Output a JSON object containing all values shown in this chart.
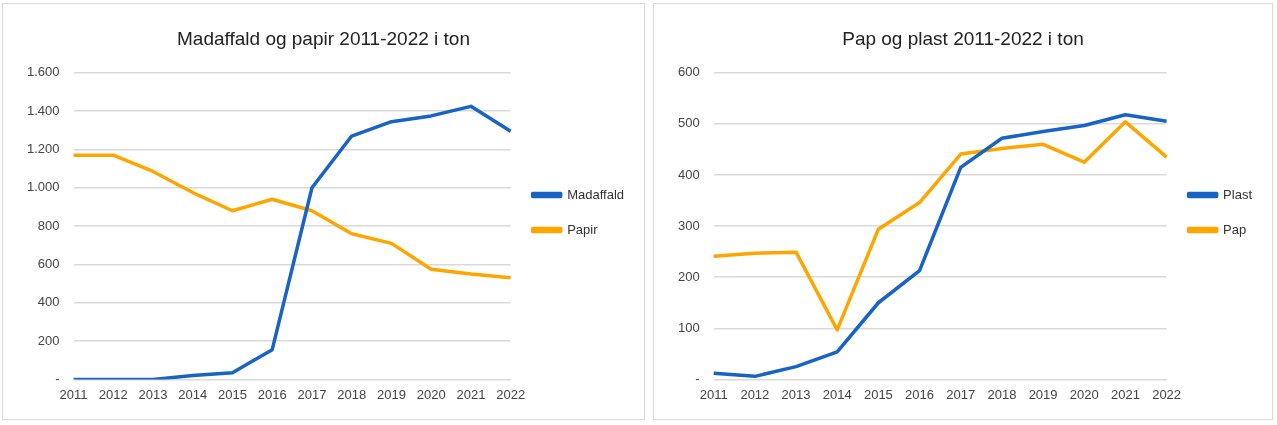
{
  "chart_data": [
    {
      "type": "line",
      "title": "Madaffald og papir 2011-2022 i ton",
      "categories": [
        "2011",
        "2012",
        "2013",
        "2014",
        "2015",
        "2016",
        "2017",
        "2018",
        "2019",
        "2020",
        "2021",
        "2022"
      ],
      "series": [
        {
          "name": "Madaffald",
          "color": "#1763c6",
          "values": [
            0,
            0,
            0,
            20,
            35,
            155,
            1000,
            1270,
            1345,
            1375,
            1425,
            1295
          ]
        },
        {
          "name": "Papir",
          "color": "#ffa500",
          "values": [
            1170,
            1170,
            1085,
            975,
            880,
            940,
            880,
            760,
            710,
            575,
            550,
            530
          ]
        }
      ],
      "ylim": [
        0,
        1600
      ],
      "yticks": [
        {
          "value": 0,
          "label": "-"
        },
        {
          "value": 200,
          "label": "200"
        },
        {
          "value": 400,
          "label": "400"
        },
        {
          "value": 600,
          "label": "600"
        },
        {
          "value": 800,
          "label": "800"
        },
        {
          "value": 1000,
          "label": "1.000"
        },
        {
          "value": 1200,
          "label": "1.200"
        },
        {
          "value": 1400,
          "label": "1.400"
        },
        {
          "value": 1600,
          "label": "1.600"
        }
      ],
      "grid": "y",
      "legend": "right"
    },
    {
      "type": "line",
      "title": "Pap og plast 2011-2022 i ton",
      "categories": [
        "2011",
        "2012",
        "2013",
        "2014",
        "2015",
        "2016",
        "2017",
        "2018",
        "2019",
        "2020",
        "2021",
        "2022"
      ],
      "series": [
        {
          "name": "Plast",
          "color": "#1763c6",
          "values": [
            12,
            6,
            25,
            54,
            150,
            213,
            415,
            472,
            485,
            497,
            518,
            505
          ]
        },
        {
          "name": "Pap",
          "color": "#ffa500",
          "values": [
            241,
            247,
            249,
            97,
            294,
            346,
            441,
            452,
            460,
            425,
            504,
            435
          ]
        }
      ],
      "ylim": [
        0,
        600
      ],
      "yticks": [
        {
          "value": 0,
          "label": "-"
        },
        100,
        200,
        300,
        400,
        500,
        600
      ],
      "grid": "y",
      "legend": "right"
    }
  ]
}
